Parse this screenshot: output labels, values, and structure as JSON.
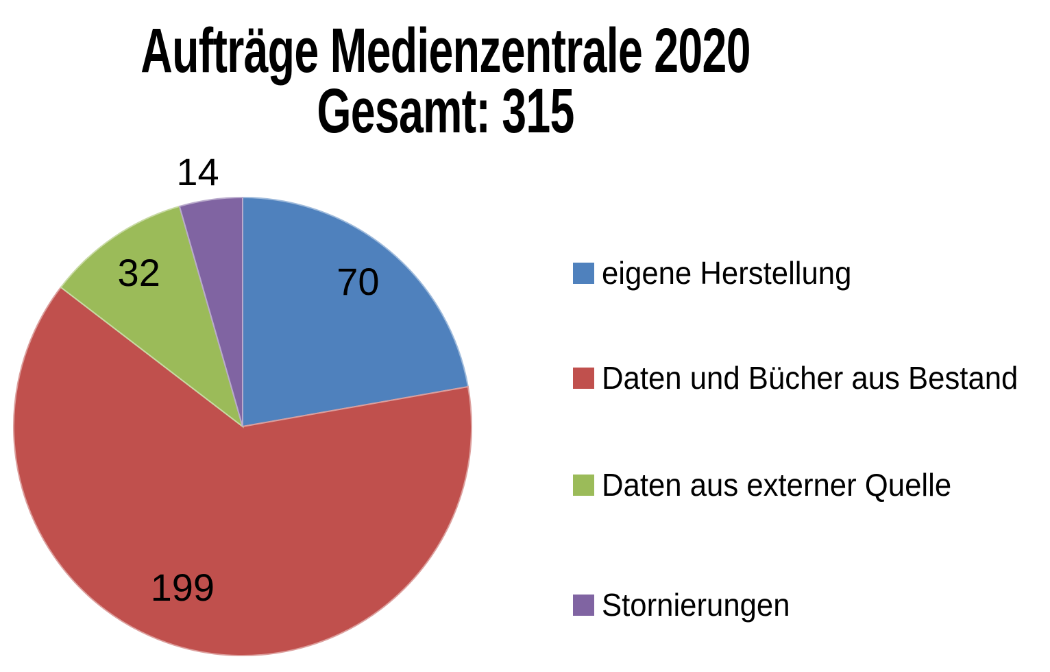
{
  "chart_data": {
    "type": "pie",
    "title": "Aufträge Medienzentrale 2020",
    "subtitle": "Gesamt: 315",
    "total": 315,
    "start_angle_deg": 0,
    "direction": "clockwise",
    "legend_position": "right",
    "data_labels": "values",
    "slices": [
      {
        "label": "eigene Herstellung",
        "value": 70,
        "color": "#4F81BD"
      },
      {
        "label": "Daten und Bücher aus Bestand",
        "value": 199,
        "color": "#C0504D"
      },
      {
        "label": "Daten aus externer Quelle",
        "value": 32,
        "color": "#9BBB59"
      },
      {
        "label": "Stornierungen",
        "value": 14,
        "color": "#8064A2"
      }
    ],
    "label_layout_hints": [
      {
        "angle_deg": 38.5,
        "radius_factor": 0.81,
        "inside": true
      },
      {
        "angle_deg": 200.5,
        "radius_factor": 0.75,
        "inside": true
      },
      {
        "angle_deg": 326.0,
        "radius_factor": 0.81,
        "inside": true
      },
      {
        "angle_deg": 350.0,
        "radius_factor": 1.13,
        "inside": false
      }
    ]
  }
}
